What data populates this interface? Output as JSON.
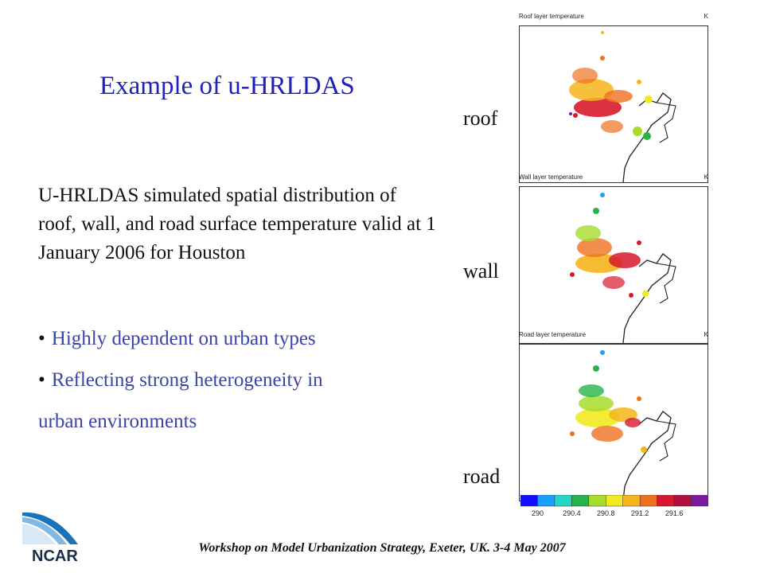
{
  "slide": {
    "title": "Example of u-HRLDAS",
    "description": "U-HRLDAS simulated spatial distribution of roof, wall, and road surface temperature valid at 1 January 2006 for Houston",
    "bullets": [
      "Highly dependent on urban types",
      "Reflecting strong heterogeneity in",
      "urban environments"
    ],
    "bullet_marker": "•",
    "footer": "Workshop on Model Urbanization Strategy, Exeter, UK. 3-4 May 2007",
    "logo_text": "NCAR"
  },
  "panels": [
    {
      "label": "roof",
      "title": "Roof layer temperature",
      "unit": "K"
    },
    {
      "label": "wall",
      "title": "Wall layer temperature",
      "unit": "K"
    },
    {
      "label": "road",
      "title": "Road layer temperature",
      "unit": "K"
    }
  ],
  "colorbar": {
    "colors": [
      "#1010ff",
      "#1aa0ff",
      "#22d6c8",
      "#26b34a",
      "#a8dc2c",
      "#f2ea1e",
      "#f5b41a",
      "#f07020",
      "#d8182e",
      "#b01040",
      "#7a1aa0"
    ],
    "tick_labels": [
      "290",
      "290.4",
      "290.8",
      "291.2",
      "291.6"
    ]
  }
}
